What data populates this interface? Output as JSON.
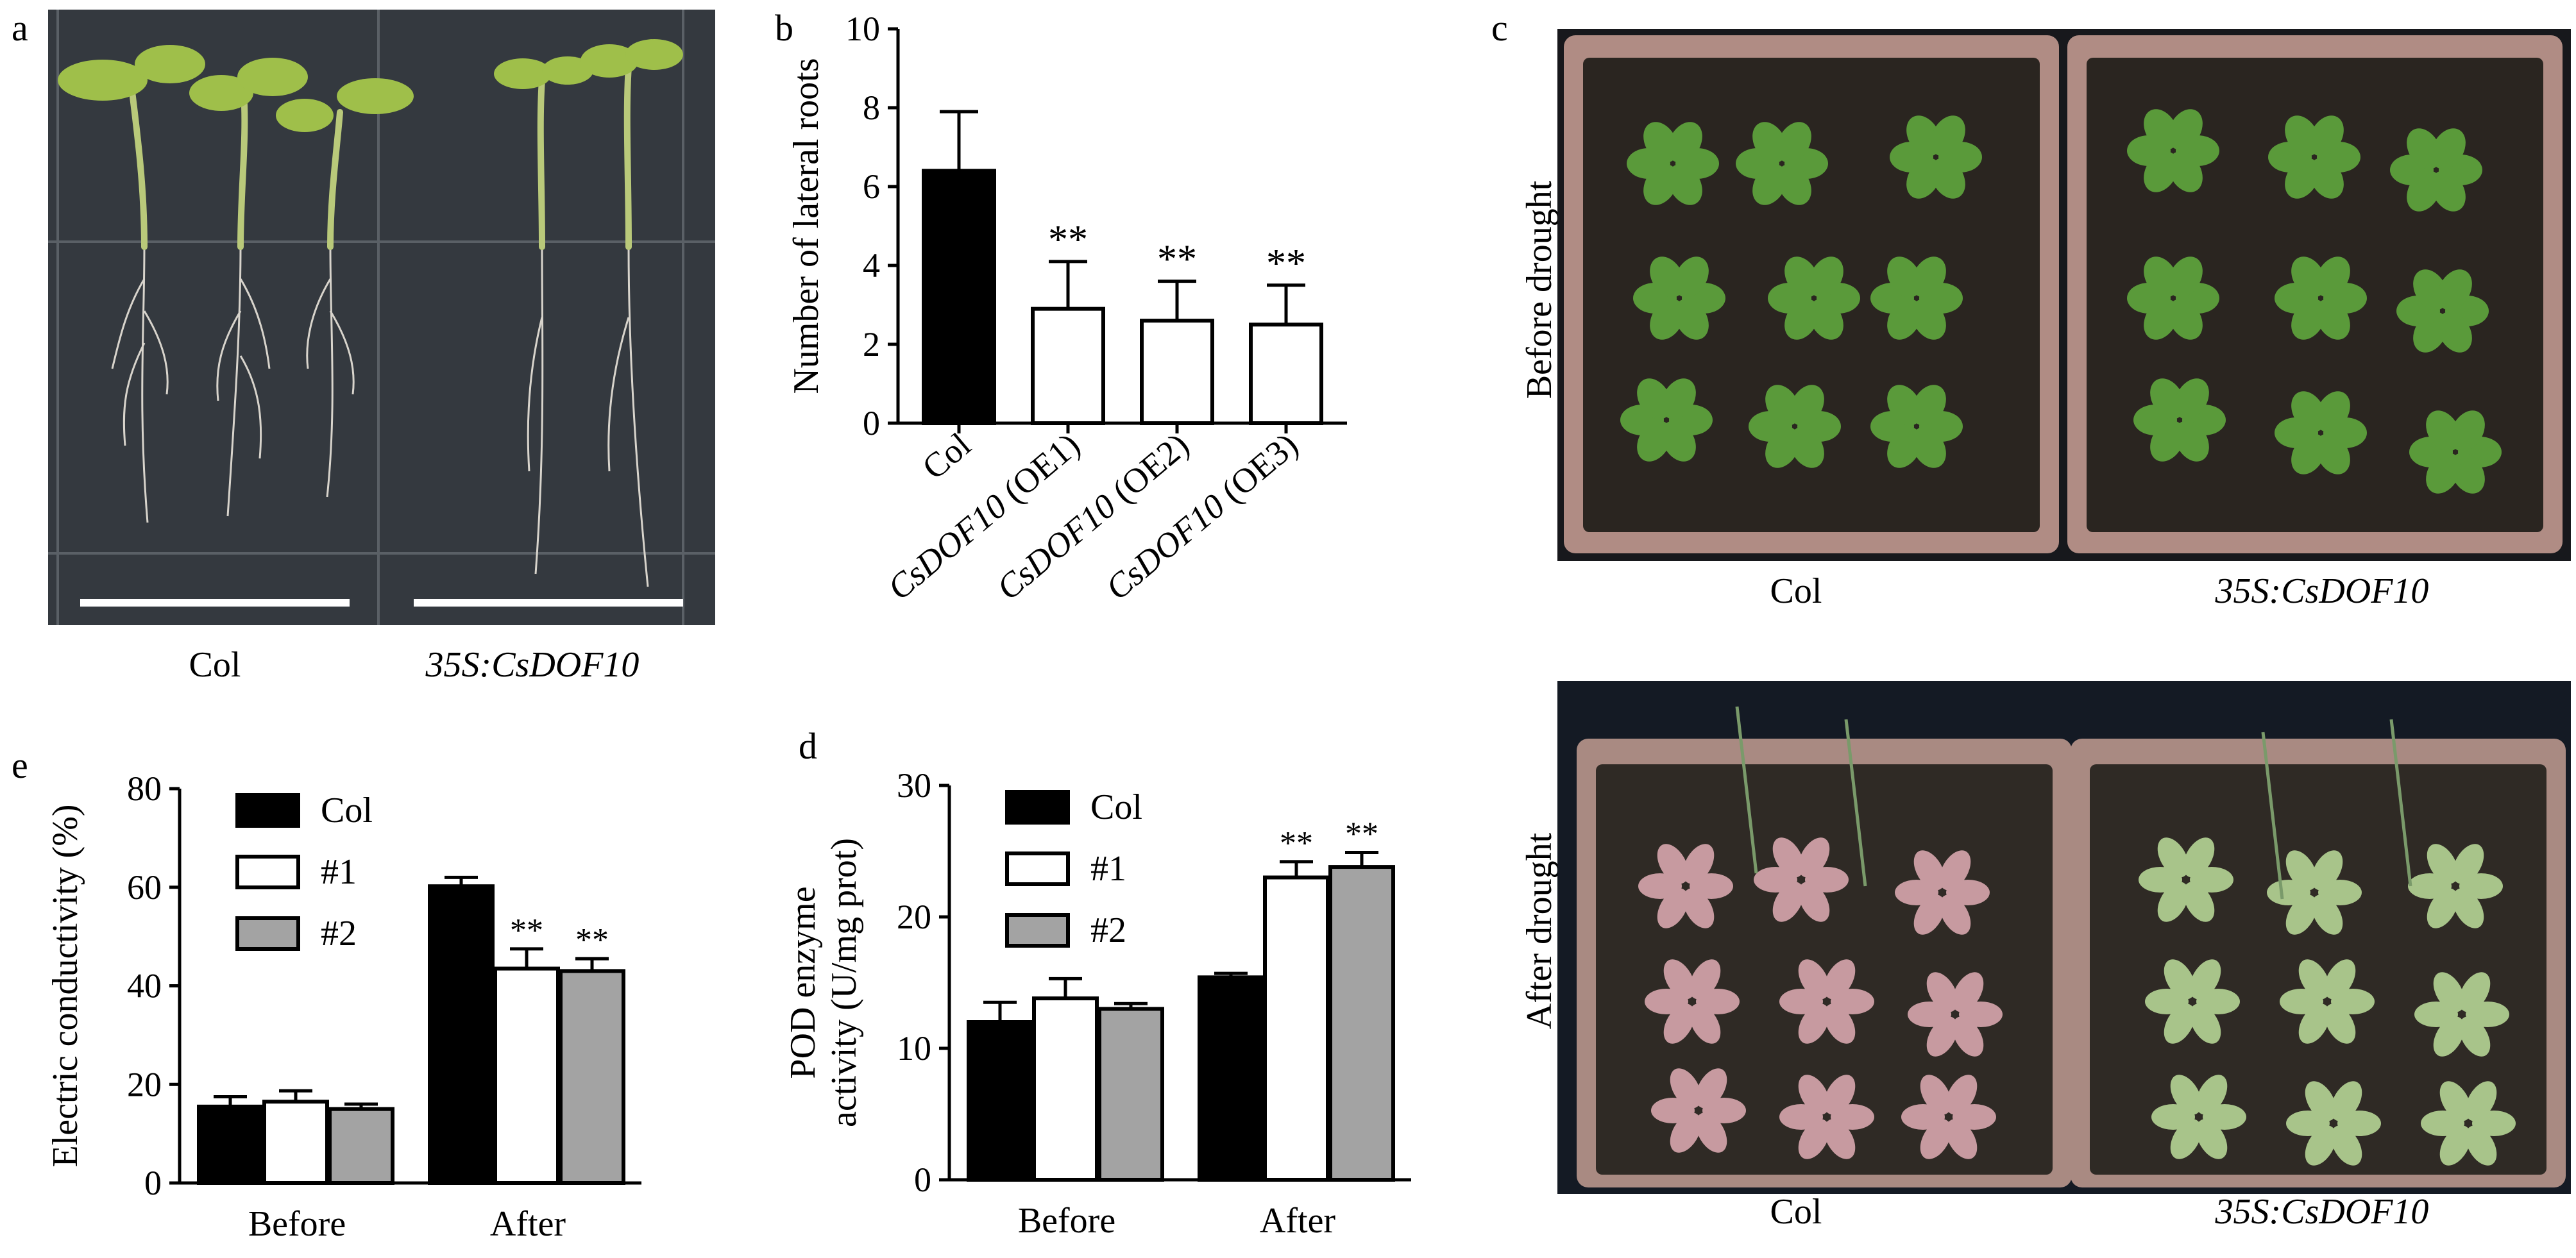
{
  "panels": {
    "a": {
      "letter": "a",
      "captions": [
        "Col",
        "35S:CsDOF10"
      ]
    },
    "b": {
      "letter": "b"
    },
    "c": {
      "letter": "c",
      "row_labels": [
        "Before drought",
        "After drought"
      ],
      "captions_top": [
        "Col",
        "35S:CsDOF10"
      ],
      "captions_bottom": [
        "Col",
        "35S:CsDOF10"
      ]
    },
    "d": {
      "letter": "d"
    },
    "e": {
      "letter": "e"
    }
  },
  "colors": {
    "black": "#000000",
    "white": "#ffffff",
    "gray": "#a3a3a3",
    "photo_dark": "#1a1c20",
    "soil": "#2a2520",
    "pot": "#b08c84",
    "plant_green": "#5a9a3a",
    "plant_pink": "#c79aa0",
    "plant_pale": "#a8c48a",
    "root": "#d8d4cc",
    "seedling": "#9fbf4a"
  },
  "chart_data": [
    {
      "id": "b",
      "type": "bar",
      "ylabel": "Number of lateral roots",
      "ylim": [
        0,
        10
      ],
      "yticks": [
        0,
        2,
        4,
        6,
        8,
        10
      ],
      "categories": [
        {
          "prefix": "",
          "italic": "",
          "suffix": "Col"
        },
        {
          "prefix": "",
          "italic": "CsDOF10",
          "suffix": " (OE1)"
        },
        {
          "prefix": "",
          "italic": "CsDOF10",
          "suffix": " (OE2)"
        },
        {
          "prefix": "",
          "italic": "CsDOF10",
          "suffix": " (OE3)"
        }
      ],
      "values": [
        6.4,
        2.9,
        2.6,
        2.5
      ],
      "errors": [
        1.5,
        1.2,
        1.0,
        1.0
      ],
      "fills": [
        "black",
        "white",
        "white",
        "white"
      ],
      "annotations": [
        "",
        "**",
        "**",
        "**"
      ]
    },
    {
      "id": "e",
      "type": "bar",
      "ylabel": "Electric conductivity (%)",
      "ylim": [
        0,
        80
      ],
      "yticks": [
        0,
        20,
        40,
        60,
        80
      ],
      "categories": [
        "Before",
        "After"
      ],
      "series": [
        {
          "name": "Col",
          "values": [
            15.5,
            60.2
          ],
          "errors": [
            2.0,
            1.8
          ],
          "fill": "black",
          "annotations": [
            "",
            ""
          ]
        },
        {
          "name": "#1",
          "values": [
            16.5,
            43.5
          ],
          "errors": [
            2.2,
            4.0
          ],
          "fill": "white",
          "annotations": [
            "",
            "**"
          ]
        },
        {
          "name": "#2",
          "values": [
            15.0,
            43.0
          ],
          "errors": [
            1.0,
            2.5
          ],
          "fill": "gray",
          "annotations": [
            "",
            "**"
          ]
        }
      ],
      "legend": "top-left"
    },
    {
      "id": "d",
      "type": "bar",
      "ylabel_lines": [
        "POD enzyme",
        "activity (U/mg prot)"
      ],
      "ylim": [
        0,
        30
      ],
      "yticks": [
        0,
        10,
        20,
        30
      ],
      "categories": [
        "Before",
        "After"
      ],
      "series": [
        {
          "name": "Col",
          "values": [
            12.0,
            15.4
          ],
          "errors": [
            1.5,
            0.3
          ],
          "fill": "black",
          "annotations": [
            "",
            ""
          ]
        },
        {
          "name": "#1",
          "values": [
            13.8,
            23.0
          ],
          "errors": [
            1.5,
            1.2
          ],
          "fill": "white",
          "annotations": [
            "",
            "**"
          ]
        },
        {
          "name": "#2",
          "values": [
            13.0,
            23.8
          ],
          "errors": [
            0.4,
            1.1
          ],
          "fill": "gray",
          "annotations": [
            "",
            "**"
          ]
        }
      ],
      "legend": "top-left"
    }
  ]
}
